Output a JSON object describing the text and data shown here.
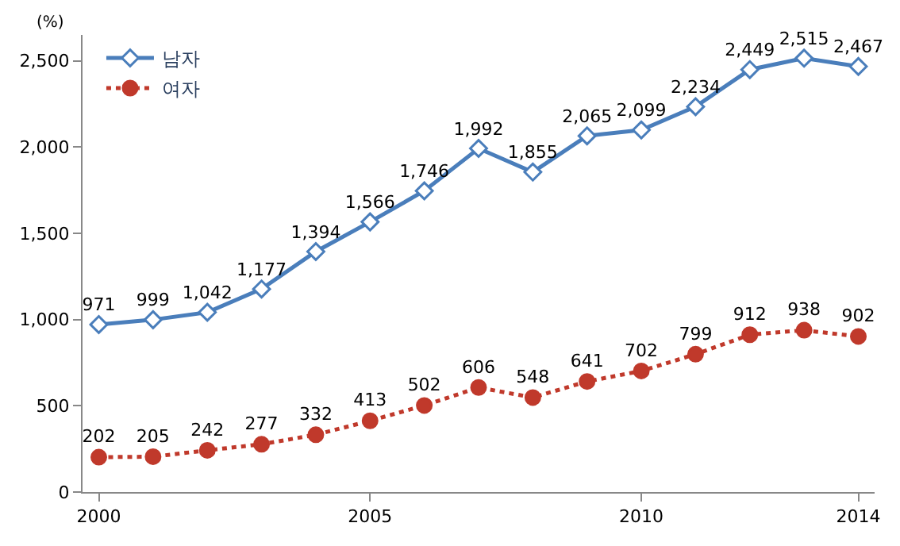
{
  "chart_data": {
    "type": "line",
    "x": [
      2000,
      2001,
      2002,
      2003,
      2004,
      2005,
      2006,
      2007,
      2008,
      2009,
      2010,
      2011,
      2012,
      2013,
      2014
    ],
    "ylabel": "(%)",
    "series": [
      {
        "name": "남자",
        "color": "#4a7ebb",
        "marker": "diamond",
        "line_style": "solid",
        "values": [
          971,
          999,
          1042,
          1177,
          1394,
          1566,
          1746,
          1992,
          1855,
          2065,
          2099,
          2234,
          2449,
          2515,
          2467
        ],
        "value_labels": [
          "971",
          "999",
          "1,042",
          "1,177",
          "1,394",
          "1,566",
          "1,746",
          "1,992",
          "1,855",
          "2,065",
          "2,099",
          "2,234",
          "2,449",
          "2,515",
          "2,467"
        ]
      },
      {
        "name": "여자",
        "color": "#c0392b",
        "marker": "circle",
        "line_style": "dotted",
        "values": [
          202,
          205,
          242,
          277,
          332,
          413,
          502,
          606,
          548,
          641,
          702,
          799,
          912,
          938,
          902
        ],
        "value_labels": [
          "202",
          "205",
          "242",
          "277",
          "332",
          "413",
          "502",
          "606",
          "548",
          "641",
          "702",
          "799",
          "912",
          "938",
          "902"
        ]
      }
    ],
    "xlim": [
      1999.7,
      2014.3
    ],
    "xticks": [
      2000,
      2005,
      2010,
      2014
    ],
    "ylim": [
      0,
      2650
    ],
    "yticks": [
      0,
      500,
      {
        "value": 1000,
        "label": "1,000"
      },
      {
        "value": 1500,
        "label": "1,500"
      },
      {
        "value": 2000,
        "label": "2,000"
      },
      {
        "value": 2500,
        "label": "2,500"
      }
    ],
    "legend": "top left"
  }
}
